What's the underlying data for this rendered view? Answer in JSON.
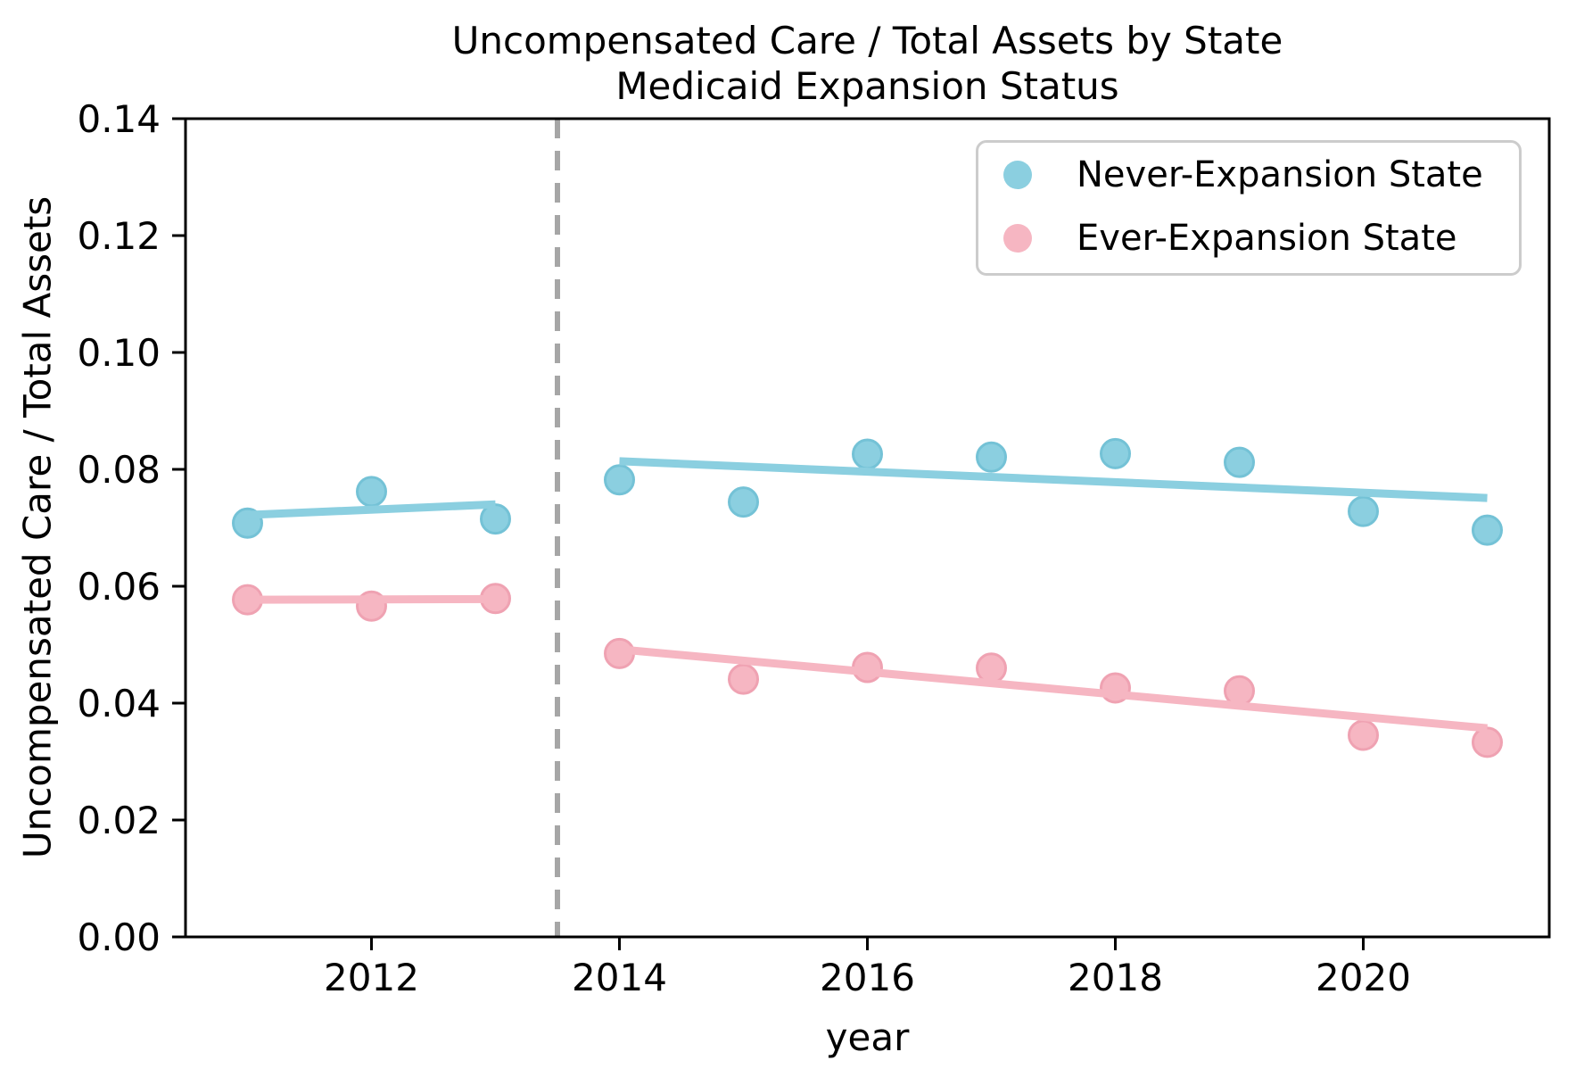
{
  "title": {
    "line1": "Uncompensated Care / Total Assets by State",
    "line2": "Medicaid Expansion Status"
  },
  "axes": {
    "xlabel": "year",
    "ylabel": "Uncompensated Care / Total Assets",
    "xlim": [
      2010.5,
      2021.5
    ],
    "ylim": [
      0.0,
      0.14
    ],
    "xticks": [
      2012,
      2014,
      2016,
      2018,
      2020
    ],
    "yticks": [
      0.0,
      0.02,
      0.04,
      0.06,
      0.08,
      0.1,
      0.12,
      0.14
    ],
    "grid": false
  },
  "chart_data": {
    "type": "scatter",
    "title": "Uncompensated Care / Total Assets by State\nMedicaid Expansion Status",
    "xlabel": "year",
    "ylabel": "Uncompensated Care / Total Assets",
    "x": [
      2011,
      2012,
      2013,
      2014,
      2015,
      2016,
      2017,
      2018,
      2019,
      2020,
      2021
    ],
    "series": [
      {
        "name": "Never-Expansion State",
        "color": "#8BCFE0",
        "edge_color": "#74C2D6",
        "values": [
          0.0708,
          0.0762,
          0.0715,
          0.0782,
          0.0744,
          0.0826,
          0.0821,
          0.0827,
          0.0812,
          0.0728,
          0.0696
        ]
      },
      {
        "name": "Ever-Expansion State",
        "color": "#F6B6C2",
        "edge_color": "#EFA2B2",
        "values": [
          0.0577,
          0.0566,
          0.0579,
          0.0485,
          0.0441,
          0.0461,
          0.046,
          0.0426,
          0.0421,
          0.0345,
          0.0333
        ]
      }
    ],
    "trend_lines": [
      {
        "series": "Never-Expansion State",
        "segment": "pre-expansion",
        "x": [
          2011,
          2013
        ],
        "y": [
          0.0722,
          0.074
        ]
      },
      {
        "series": "Ever-Expansion State",
        "segment": "pre-expansion",
        "x": [
          2011,
          2013
        ],
        "y": [
          0.0577,
          0.0578
        ]
      },
      {
        "series": "Never-Expansion State",
        "segment": "post-expansion",
        "x": [
          2014,
          2021
        ],
        "y": [
          0.0814,
          0.0751
        ]
      },
      {
        "series": "Ever-Expansion State",
        "segment": "post-expansion",
        "x": [
          2014,
          2021
        ],
        "y": [
          0.0492,
          0.0357
        ]
      }
    ],
    "vline": {
      "x": 2013.5,
      "style": "dashed",
      "color": "#A6A6A6"
    },
    "legend": {
      "position": "upper right",
      "entries": [
        {
          "label": "Never-Expansion State",
          "color": "#8BCFE0"
        },
        {
          "label": "Ever-Expansion State",
          "color": "#F6B6C2"
        }
      ]
    }
  }
}
